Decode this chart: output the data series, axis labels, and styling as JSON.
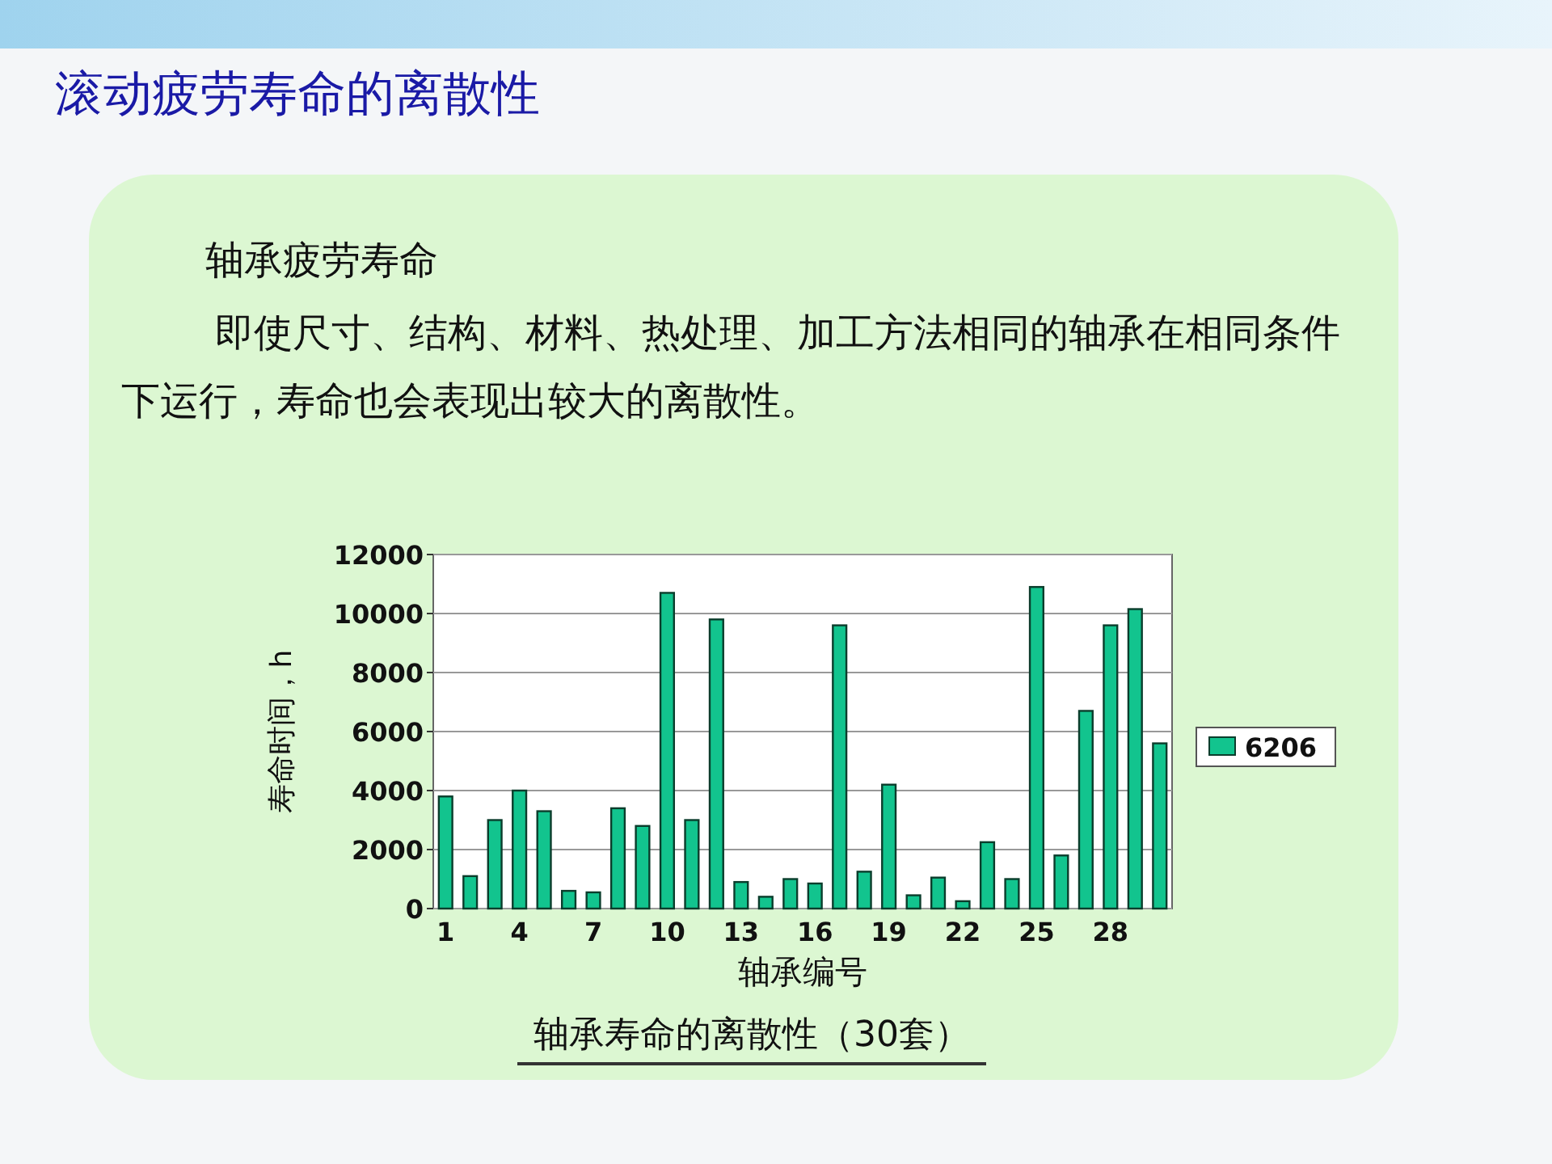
{
  "chart_data": {
    "type": "bar",
    "title": "滚动疲劳寿命的离散性",
    "annotations": [
      "轴承疲劳寿命",
      "即使尺寸、结构、材料、热处理、加工方法相同的轴承在相同条件下运行，寿命也会表现出较大的离散性。",
      "轴承寿命的离散性（30套）"
    ],
    "xlabel": "轴承编号",
    "ylabel": "寿命时间，h",
    "categories": [
      "1",
      null,
      null,
      "4",
      null,
      null,
      "7",
      null,
      null,
      "10",
      null,
      null,
      "13",
      null,
      null,
      "16",
      null,
      null,
      "19",
      null,
      null,
      "22",
      null,
      null,
      "25",
      null,
      null,
      "28",
      null,
      null
    ],
    "series": [
      {
        "name": "6206",
        "color": "#12c48e",
        "values": [
          3800,
          1100,
          3000,
          4000,
          3300,
          600,
          550,
          3400,
          2800,
          10700,
          3000,
          9800,
          900,
          400,
          1000,
          850,
          9600,
          1250,
          4200,
          450,
          1050,
          250,
          2250,
          1000,
          10900,
          1800,
          6700,
          9600,
          10150,
          5600
        ]
      }
    ],
    "ylim": [
      0,
      12000
    ],
    "yticks": [
      0,
      2000,
      4000,
      6000,
      8000,
      10000,
      12000
    ],
    "grid": "y",
    "legend": "right"
  }
}
